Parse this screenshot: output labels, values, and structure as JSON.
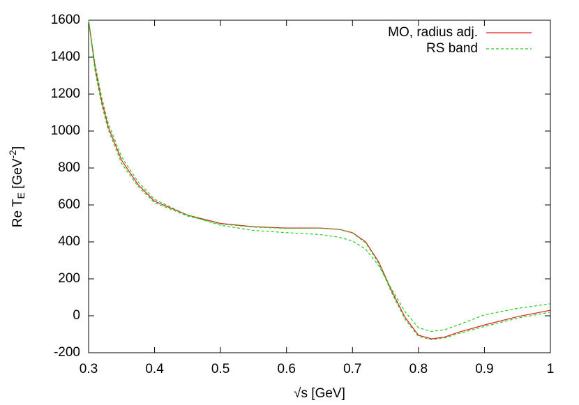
{
  "chart_data": {
    "type": "line",
    "xlabel": "√s [GeV]",
    "ylabel": {
      "text": "Re T",
      "sub": "E",
      "mid": " [GeV",
      "sup": "-2",
      "end": "]"
    },
    "x": [
      0.3,
      0.31,
      0.32,
      0.33,
      0.35,
      0.375,
      0.4,
      0.45,
      0.5,
      0.55,
      0.6,
      0.65,
      0.68,
      0.7,
      0.72,
      0.74,
      0.76,
      0.78,
      0.8,
      0.82,
      0.84,
      0.86,
      0.9,
      0.95,
      1.0
    ],
    "series": [
      {
        "name": "MO, radius adj.",
        "color": "#e0201b",
        "dash": false,
        "values": [
          1600,
          1340,
          1160,
          1020,
          842,
          710,
          620,
          545,
          500,
          482,
          475,
          475,
          468,
          450,
          400,
          290,
          130,
          -10,
          -105,
          -125,
          -115,
          -90,
          -50,
          -5,
          30
        ]
      },
      {
        "name": "RS band",
        "color": "#22cc22",
        "dash": true,
        "values": [
          1600,
          1360,
          1180,
          1040,
          860,
          725,
          630,
          545,
          490,
          462,
          450,
          440,
          425,
          405,
          360,
          270,
          140,
          20,
          -65,
          -85,
          -75,
          -50,
          5,
          40,
          65
        ],
        "lower": [
          1600,
          1320,
          1140,
          1005,
          825,
          700,
          612,
          540,
          497,
          480,
          473,
          474,
          467,
          448,
          395,
          282,
          120,
          -20,
          -112,
          -130,
          -120,
          -97,
          -58,
          -13,
          20
        ]
      }
    ],
    "xlim": [
      0.3,
      1
    ],
    "xticks": [
      0.3,
      0.4,
      0.5,
      0.6,
      0.7,
      0.8,
      0.9,
      1
    ],
    "ylim": [
      -200,
      1600
    ],
    "yticks": [
      -200,
      0,
      200,
      400,
      600,
      800,
      1000,
      1200,
      1400,
      1600
    ],
    "grid": false,
    "legend": "top-right"
  }
}
